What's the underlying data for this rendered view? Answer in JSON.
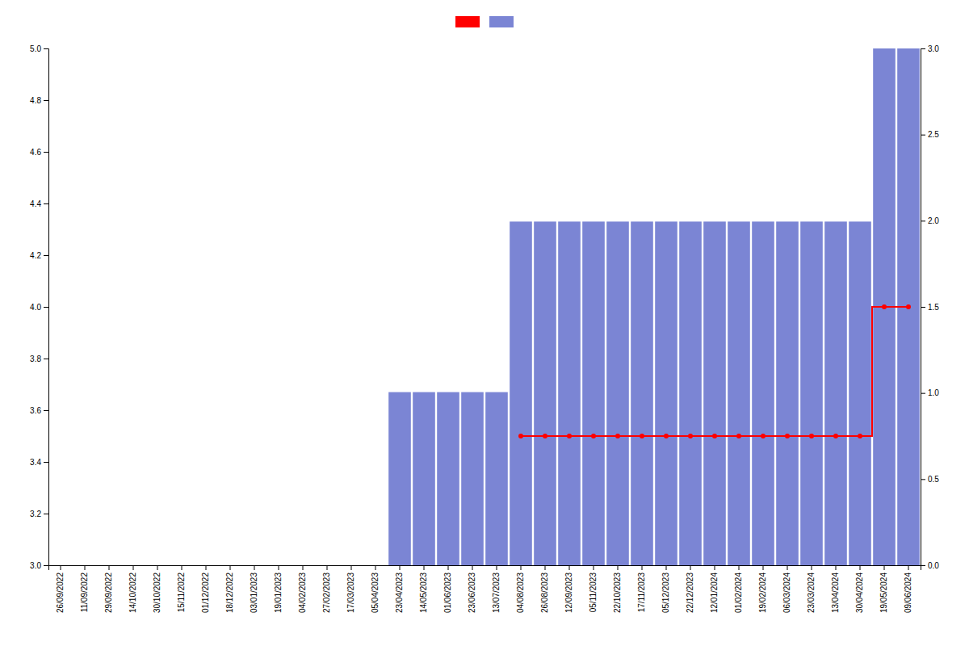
{
  "chart_data": {
    "type": "bar",
    "categories": [
      "26/09/2022",
      "11/09/2022",
      "29/09/2022",
      "14/10/2022",
      "30/10/2022",
      "15/11/2022",
      "01/12/2022",
      "18/12/2022",
      "03/01/2023",
      "19/01/2023",
      "04/02/2023",
      "27/02/2023",
      "17/03/2023",
      "05/04/2023",
      "23/04/2023",
      "14/05/2023",
      "01/06/2023",
      "23/06/2023",
      "13/07/2023",
      "04/08/2023",
      "26/08/2023",
      "12/09/2023",
      "05/11/2023",
      "22/10/2023",
      "17/11/2023",
      "05/12/2023",
      "22/12/2023",
      "12/01/2024",
      "01/02/2024",
      "19/02/2024",
      "06/03/2024",
      "23/03/2024",
      "13/04/2024",
      "30/04/2024",
      "19/05/2024",
      "09/06/2024"
    ],
    "series": [
      {
        "type": "line",
        "color": "#ff0000",
        "marker": "circle",
        "line_style": "step",
        "values": [
          null,
          null,
          null,
          null,
          null,
          null,
          null,
          null,
          null,
          null,
          null,
          null,
          null,
          null,
          null,
          null,
          null,
          null,
          null,
          3.5,
          3.5,
          3.5,
          3.5,
          3.5,
          3.5,
          3.5,
          3.5,
          3.5,
          3.5,
          3.5,
          3.5,
          3.5,
          3.5,
          3.5,
          4.0,
          4.0
        ]
      },
      {
        "type": "bar",
        "color": "#7b85d4",
        "values": [
          null,
          null,
          null,
          null,
          null,
          null,
          null,
          null,
          null,
          null,
          null,
          null,
          null,
          null,
          3.67,
          3.67,
          3.67,
          3.67,
          3.67,
          4.33,
          4.33,
          4.33,
          4.33,
          4.33,
          4.33,
          4.33,
          4.33,
          4.33,
          4.33,
          4.33,
          4.33,
          4.33,
          4.33,
          4.33,
          5.0,
          5.0
        ]
      }
    ],
    "ylim": [
      3.0,
      5.0
    ],
    "yticks": [
      {
        "value": 3.0,
        "label": "3.0"
      },
      3.2,
      3.4,
      3.6,
      3.8,
      {
        "value": 4.0,
        "label": "4.0"
      },
      4.2,
      4.4,
      4.6,
      4.8,
      {
        "value": 5.0,
        "label": "5.0"
      }
    ],
    "y2lim": [
      0,
      3.0
    ],
    "y2ticks": [
      {
        "value": 0,
        "label": "0.0"
      },
      0.5,
      {
        "value": 1.0,
        "label": "1.0"
      },
      1.5,
      {
        "value": 2.0,
        "label": "2.0"
      },
      2.5,
      {
        "value": 3.0,
        "label": "3.0"
      }
    ],
    "grid": false,
    "legend": "top"
  }
}
